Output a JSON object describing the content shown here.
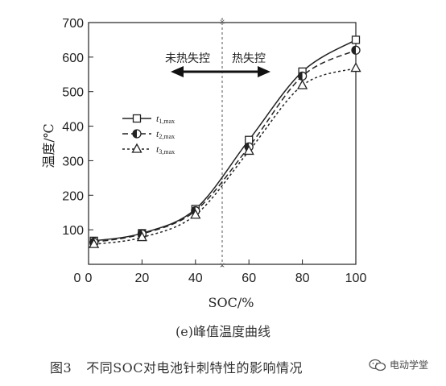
{
  "chart_data": {
    "type": "line",
    "xlabel": "SOC/%",
    "ylabel": "温度/℃",
    "x_ticks": [
      0,
      20,
      40,
      60,
      80,
      100
    ],
    "y_ticks": [
      100,
      200,
      300,
      400,
      500,
      600,
      700
    ],
    "xlim": [
      0,
      100
    ],
    "ylim": [
      0,
      700
    ],
    "x": [
      2,
      20,
      40,
      60,
      80,
      100
    ],
    "series": [
      {
        "name": "t1,max",
        "label_main": "t",
        "label_sub": "1,max",
        "marker": "square",
        "values": [
          68,
          90,
          160,
          360,
          558,
          650
        ],
        "dash": "none"
      },
      {
        "name": "t2,max",
        "label_main": "t",
        "label_sub": "2,max",
        "marker": "half-circle",
        "values": [
          64,
          88,
          155,
          340,
          545,
          620
        ],
        "dash": "7,4"
      },
      {
        "name": "t3,max",
        "label_main": "t",
        "label_sub": "3,max",
        "marker": "triangle",
        "values": [
          58,
          78,
          143,
          328,
          518,
          568
        ],
        "dash": "3,3"
      }
    ],
    "divider_x": 50,
    "annotations": {
      "left": "未热失控",
      "right": "热失控"
    },
    "legend_position": "left-middle",
    "grid": false
  },
  "subcaption": "(e)峰值温度曲线",
  "caption": {
    "figure_number": "图3",
    "text": "不同SOC对电池针刺特性的影响情况"
  },
  "watermark": {
    "text": "电动学堂",
    "icon": "wechat-icon"
  }
}
